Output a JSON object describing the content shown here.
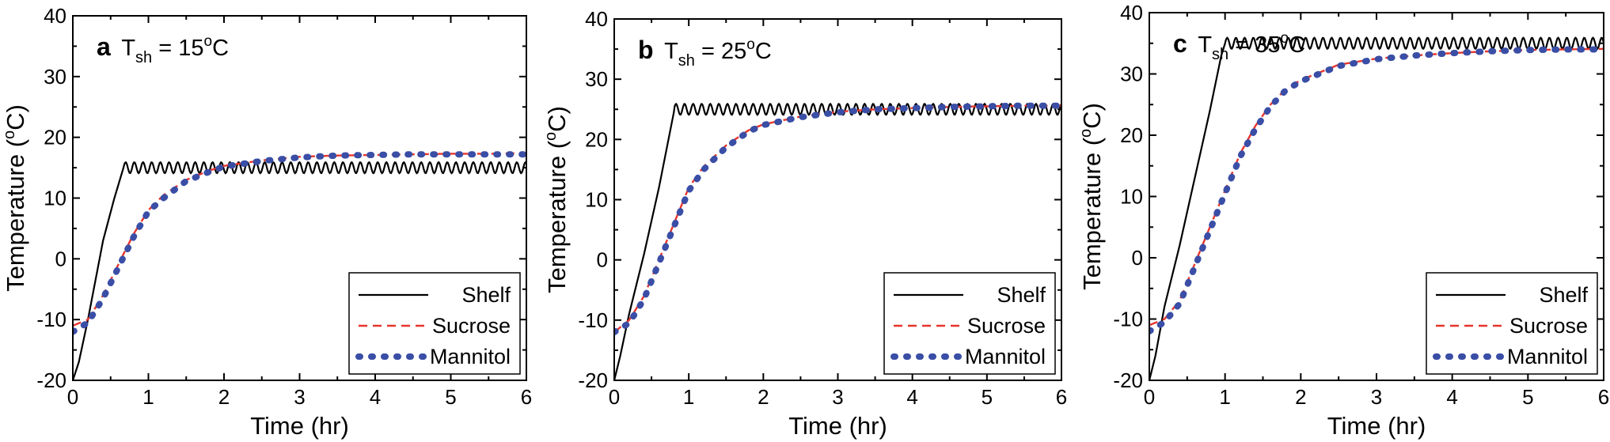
{
  "chart_data": [
    {
      "type": "line",
      "panel_letter": "a",
      "panel_label": {
        "prefix": "T",
        "sub": "sh",
        "value": " = 15",
        "degree": "o",
        "unit": "C"
      },
      "xlabel": "Time (hr)",
      "ylabel": {
        "text_before": "Temperature (",
        "degree": "o",
        "text_after": "C)"
      },
      "xlim": [
        0,
        6
      ],
      "ylim": [
        -20,
        40
      ],
      "xticks": [
        "0",
        "1",
        "2",
        "3",
        "4",
        "5",
        "6"
      ],
      "yticks": [
        "-20",
        "-10",
        "0",
        "10",
        "20",
        "30",
        "40"
      ],
      "legend_position": "bottom-right",
      "grid": false,
      "series": [
        {
          "name": "Shelf",
          "style": "solid",
          "color": "#000000",
          "points": [
            [
              0,
              -20
            ],
            [
              0.08,
              -17
            ],
            [
              0.2,
              -10
            ],
            [
              0.4,
              3
            ],
            [
              0.55,
              10
            ],
            [
              0.67,
              15
            ],
            [
              1,
              15
            ],
            [
              2,
              15
            ],
            [
              3,
              15
            ],
            [
              4,
              15
            ],
            [
              5,
              15
            ],
            [
              6,
              15
            ]
          ],
          "oscillation": 0.9
        },
        {
          "name": "Sucrose",
          "style": "dashed",
          "color": "#e8352c",
          "points": [
            [
              0,
              -11
            ],
            [
              0.2,
              -10
            ],
            [
              0.4,
              -6
            ],
            [
              0.6,
              -1
            ],
            [
              0.8,
              4
            ],
            [
              1,
              8
            ],
            [
              1.2,
              10.5
            ],
            [
              1.5,
              13
            ],
            [
              1.8,
              14.5
            ],
            [
              2,
              15.3
            ],
            [
              2.5,
              16.2
            ],
            [
              3,
              16.8
            ],
            [
              3.5,
              17
            ],
            [
              4,
              17.1
            ],
            [
              4.5,
              17.2
            ],
            [
              5,
              17.3
            ],
            [
              5.5,
              17.3
            ],
            [
              6,
              17.4
            ]
          ]
        },
        {
          "name": "Mannitol",
          "style": "dotted",
          "color": "#3a4ea6",
          "points": [
            [
              0,
              -12
            ],
            [
              0.2,
              -10.5
            ],
            [
              0.4,
              -6.5
            ],
            [
              0.6,
              -1.5
            ],
            [
              0.8,
              3.5
            ],
            [
              1,
              7.8
            ],
            [
              1.2,
              10
            ],
            [
              1.5,
              12.8
            ],
            [
              1.8,
              14.3
            ],
            [
              2,
              15.2
            ],
            [
              2.5,
              16.1
            ],
            [
              3,
              16.7
            ],
            [
              3.5,
              17
            ],
            [
              4,
              17.1
            ],
            [
              4.5,
              17.2
            ],
            [
              5,
              17.2
            ],
            [
              5.5,
              17.2
            ],
            [
              6,
              17.2
            ]
          ]
        }
      ]
    },
    {
      "type": "line",
      "panel_letter": "b",
      "panel_label": {
        "prefix": "T",
        "sub": "sh",
        "value": " = 25",
        "degree": "o",
        "unit": "C"
      },
      "xlabel": "Time (hr)",
      "ylabel": {
        "text_before": "Temperature (",
        "degree": "o",
        "text_after": "C)"
      },
      "xlim": [
        0,
        6
      ],
      "ylim": [
        -20,
        40
      ],
      "xticks": [
        "0",
        "1",
        "2",
        "3",
        "4",
        "5",
        "6"
      ],
      "yticks": [
        "-20",
        "-10",
        "0",
        "10",
        "20",
        "30",
        "40"
      ],
      "legend_position": "bottom-right",
      "grid": false,
      "series": [
        {
          "name": "Shelf",
          "style": "solid",
          "color": "#000000",
          "points": [
            [
              0,
              -20
            ],
            [
              0.08,
              -16
            ],
            [
              0.2,
              -9
            ],
            [
              0.4,
              1
            ],
            [
              0.6,
              12
            ],
            [
              0.8,
              24.5
            ],
            [
              1,
              24.8
            ],
            [
              2,
              25
            ],
            [
              3,
              25
            ],
            [
              4,
              25
            ],
            [
              5,
              25
            ],
            [
              6,
              25
            ]
          ],
          "oscillation": 0.9
        },
        {
          "name": "Sucrose",
          "style": "dashed",
          "color": "#e8352c",
          "points": [
            [
              0,
              -12
            ],
            [
              0.2,
              -10
            ],
            [
              0.4,
              -6
            ],
            [
              0.6,
              0
            ],
            [
              0.8,
              6
            ],
            [
              1,
              12
            ],
            [
              1.2,
              15.5
            ],
            [
              1.5,
              19
            ],
            [
              1.8,
              21.5
            ],
            [
              2,
              22.5
            ],
            [
              2.5,
              23.8
            ],
            [
              3,
              24.6
            ],
            [
              3.5,
              25
            ],
            [
              4,
              25.2
            ],
            [
              4.5,
              25.4
            ],
            [
              5,
              25.5
            ],
            [
              5.5,
              25.6
            ],
            [
              6,
              25.6
            ]
          ]
        },
        {
          "name": "Mannitol",
          "style": "dotted",
          "color": "#3a4ea6",
          "points": [
            [
              0,
              -12
            ],
            [
              0.2,
              -10.5
            ],
            [
              0.4,
              -6.5
            ],
            [
              0.6,
              -0.5
            ],
            [
              0.8,
              5.5
            ],
            [
              1,
              11.5
            ],
            [
              1.2,
              15
            ],
            [
              1.5,
              18.7
            ],
            [
              1.8,
              21.3
            ],
            [
              2,
              22.4
            ],
            [
              2.5,
              23.7
            ],
            [
              3,
              24.5
            ],
            [
              3.5,
              25
            ],
            [
              4,
              25.2
            ],
            [
              4.5,
              25.4
            ],
            [
              5,
              25.5
            ],
            [
              5.5,
              25.6
            ],
            [
              6,
              25.6
            ]
          ]
        }
      ]
    },
    {
      "type": "line",
      "panel_letter": "c",
      "panel_label": {
        "prefix": "T",
        "sub": "sh",
        "value": " = 35",
        "degree": "o",
        "unit": "C"
      },
      "xlabel": "Time (hr)",
      "ylabel": {
        "text_before": "Temperature (",
        "degree": "o",
        "text_after": "C)"
      },
      "xlim": [
        0,
        6
      ],
      "ylim": [
        -20,
        40
      ],
      "xticks": [
        "0",
        "1",
        "2",
        "3",
        "4",
        "5",
        "6"
      ],
      "yticks": [
        "-20",
        "-10",
        "0",
        "10",
        "20",
        "30",
        "40"
      ],
      "legend_position": "bottom-right",
      "grid": false,
      "series": [
        {
          "name": "Shelf",
          "style": "solid",
          "color": "#000000",
          "points": [
            [
              0,
              -20
            ],
            [
              0.08,
              -16
            ],
            [
              0.2,
              -8
            ],
            [
              0.4,
              2
            ],
            [
              0.6,
              13
            ],
            [
              0.8,
              24
            ],
            [
              0.95,
              33
            ],
            [
              1,
              35
            ],
            [
              2,
              35
            ],
            [
              3,
              35
            ],
            [
              4,
              35
            ],
            [
              5,
              35
            ],
            [
              6,
              35
            ]
          ],
          "oscillation": 0.9
        },
        {
          "name": "Sucrose",
          "style": "dashed",
          "color": "#e8352c",
          "points": [
            [
              0,
              -11
            ],
            [
              0.2,
              -10
            ],
            [
              0.4,
              -7
            ],
            [
              0.6,
              -1
            ],
            [
              0.8,
              5
            ],
            [
              1,
              11
            ],
            [
              1.2,
              17
            ],
            [
              1.4,
              21.5
            ],
            [
              1.6,
              25
            ],
            [
              1.8,
              27.5
            ],
            [
              2,
              29
            ],
            [
              2.5,
              31.5
            ],
            [
              3,
              32.5
            ],
            [
              3.5,
              33
            ],
            [
              4,
              33.4
            ],
            [
              4.5,
              33.7
            ],
            [
              5,
              33.9
            ],
            [
              5.5,
              34
            ],
            [
              6,
              34.1
            ]
          ]
        },
        {
          "name": "Mannitol",
          "style": "dotted",
          "color": "#3a4ea6",
          "points": [
            [
              0,
              -12
            ],
            [
              0.2,
              -10.5
            ],
            [
              0.4,
              -7.5
            ],
            [
              0.6,
              -1.5
            ],
            [
              0.8,
              4.5
            ],
            [
              1,
              10.5
            ],
            [
              1.2,
              16.5
            ],
            [
              1.4,
              21
            ],
            [
              1.6,
              24.7
            ],
            [
              1.8,
              27.3
            ],
            [
              2,
              28.8
            ],
            [
              2.5,
              31.3
            ],
            [
              3,
              32.4
            ],
            [
              3.5,
              33
            ],
            [
              4,
              33.4
            ],
            [
              4.5,
              33.7
            ],
            [
              5,
              33.9
            ],
            [
              5.5,
              34
            ],
            [
              6,
              34
            ]
          ]
        }
      ]
    }
  ]
}
